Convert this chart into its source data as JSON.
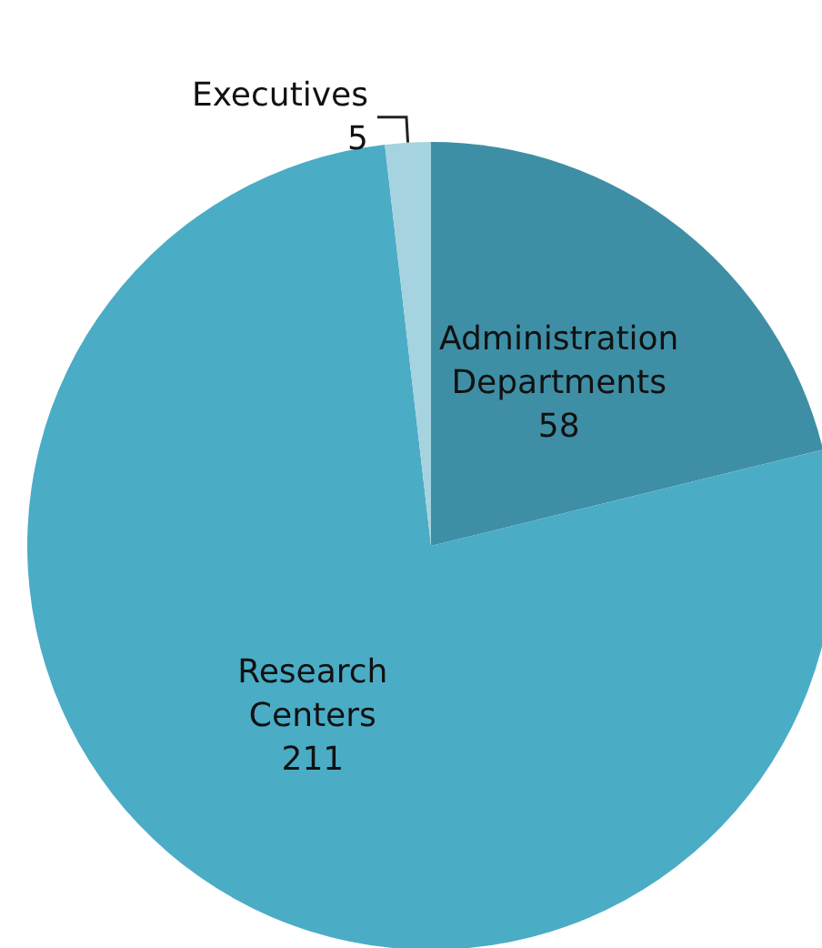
{
  "chart_data": {
    "type": "pie",
    "categories": [
      "Administration Departments",
      "Research Centers",
      "Executives"
    ],
    "values": [
      58,
      211,
      5
    ],
    "colors": [
      "#3e8fa5",
      "#4bacc6",
      "#a5d3e0"
    ],
    "data_labels": true,
    "legend": false
  }
}
